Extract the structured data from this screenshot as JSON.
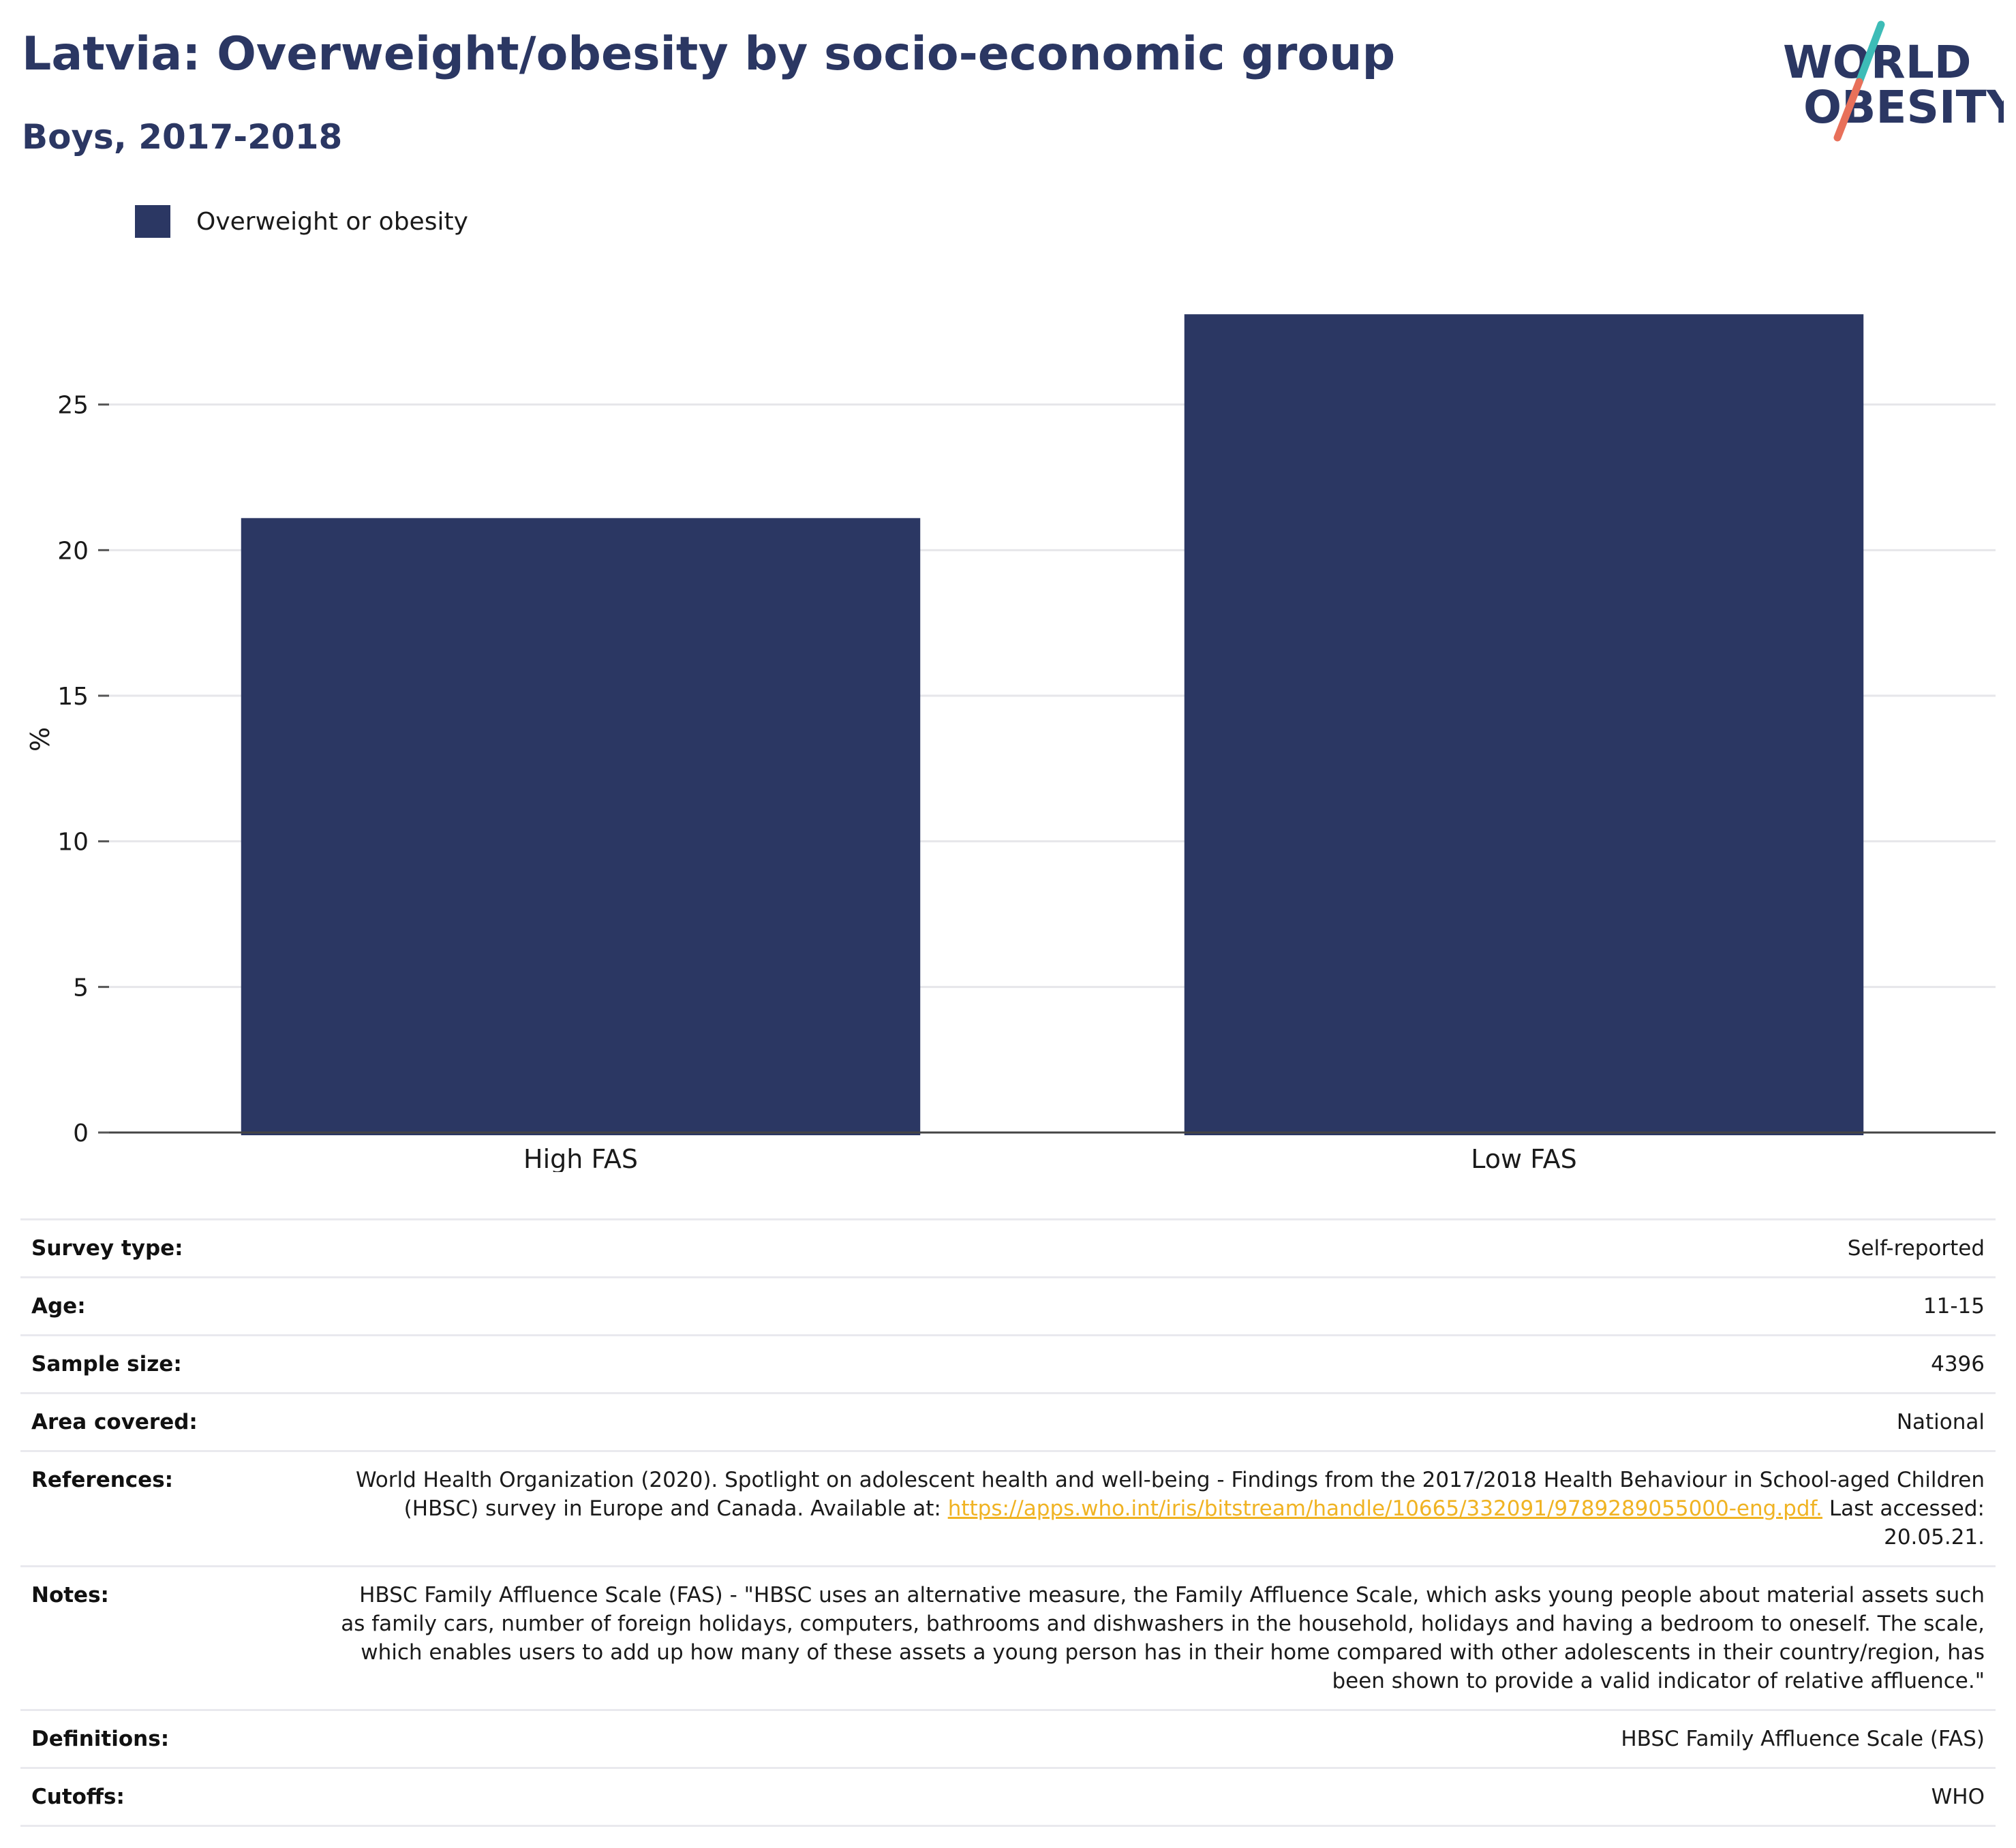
{
  "header": {
    "title": "Latvia: Overweight/obesity by socio-economic group",
    "subtitle": "Boys, 2017-2018"
  },
  "logo": {
    "line1": "WORLD",
    "line2": "OBESITY",
    "colors": {
      "text": "#2b3763",
      "slash_top": "#3dbcb7",
      "slash_bottom": "#e8705a"
    }
  },
  "legend": {
    "label": "Overweight or obesity",
    "color": "#2b3763"
  },
  "chart_data": {
    "type": "bar",
    "categories": [
      "High FAS",
      "Low FAS"
    ],
    "series": [
      {
        "name": "Overweight or obesity",
        "values": [
          21.1,
          28.1
        ],
        "color": "#2b3763"
      }
    ],
    "ylabel": "%",
    "xlabel": "",
    "ylim": [
      0,
      30
    ],
    "yticks": [
      0,
      5,
      10,
      15,
      20,
      25
    ],
    "grid": true,
    "legend_position": "top-left"
  },
  "info": {
    "rows": [
      {
        "label": "Survey type:",
        "value": "Self-reported"
      },
      {
        "label": "Age:",
        "value": "11-15"
      },
      {
        "label": "Sample size:",
        "value": "4396"
      },
      {
        "label": "Area covered:",
        "value": "National"
      }
    ],
    "references": {
      "label": "References:",
      "text": "World Health Organization (2020). Spotlight on adolescent health and well-being - Findings from the 2017/2018 Health Behaviour in School-aged Children (HBSC) survey in Europe and Canada. Available at:",
      "link": "https://apps.who.int/iris/bitstream/handle/10665/332091/9789289055000-eng.pdf.",
      "suffix": "Last accessed: 20.05.21."
    },
    "notes": {
      "label": "Notes:",
      "value": "HBSC Family Affluence Scale (FAS) - \"HBSC uses an alternative measure, the Family Affluence Scale, which asks young people about material assets such as family cars, number of foreign holidays, computers, bathrooms and dishwashers in the household, holidays and having a bedroom to oneself. The scale, which enables users to add up how many of these assets a young person has in their home compared with other adolescents in their country/region, has been shown to provide a valid indicator of relative affluence.\""
    },
    "definitions": {
      "label": "Definitions:",
      "value": "HBSC Family Affluence Scale (FAS)"
    },
    "cutoffs": {
      "label": "Cutoffs:",
      "value": "WHO"
    }
  }
}
